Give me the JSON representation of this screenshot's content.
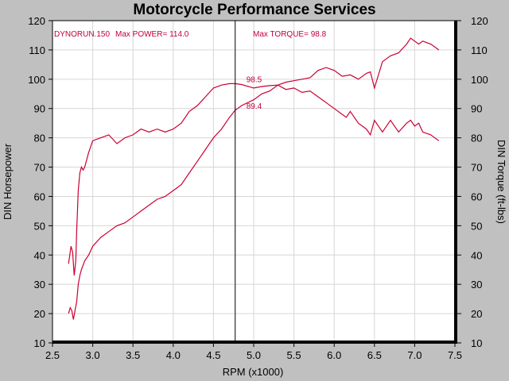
{
  "chart_data": {
    "type": "line",
    "title": "Motorcycle Performance Services",
    "xlabel": "RPM (x1000)",
    "ylabel_left": "DIN Horsepower",
    "ylabel_right": "DIN Torque (ft-lbs)",
    "xlim": [
      2.5,
      7.5
    ],
    "ylim": [
      10,
      120
    ],
    "x_ticks": [
      "2.5",
      "3.0",
      "3.5",
      "4.0",
      "4.5",
      "5.0",
      "5.5",
      "6.0",
      "6.5",
      "7.0",
      "7.5"
    ],
    "y_ticks": [
      "10",
      "20",
      "30",
      "40",
      "50",
      "60",
      "70",
      "80",
      "90",
      "100",
      "110",
      "120"
    ],
    "grid": true,
    "colors": {
      "series": "#cc0033",
      "background": "#ffffff",
      "frame": "#c0c0c0"
    },
    "annotations": {
      "run": "DYNORUN.150",
      "max_power": "Max POWER= 114.0",
      "max_torque": "Max TORQUE= 98.8",
      "cursor_x": 4.77,
      "cursor_torque_label": "98.5",
      "cursor_power_label": "89.4"
    },
    "series": [
      {
        "x": [
          2.7,
          2.73,
          2.75,
          2.77,
          2.79,
          2.8,
          2.82,
          2.84,
          2.86,
          2.88,
          2.9,
          2.95,
          3.0,
          3.1,
          3.2,
          3.3,
          3.4,
          3.5,
          3.6,
          3.7,
          3.8,
          3.9,
          4.0,
          4.1,
          4.2,
          4.3,
          4.4,
          4.5,
          4.6,
          4.7,
          4.77,
          4.85,
          5.0,
          5.1,
          5.2,
          5.3,
          5.4,
          5.5,
          5.6,
          5.7,
          5.8,
          5.9,
          6.0,
          6.1,
          6.15,
          6.2,
          6.3,
          6.4,
          6.45,
          6.5,
          6.6,
          6.7,
          6.8,
          6.9,
          6.95,
          7.0,
          7.05,
          7.1,
          7.2,
          7.3
        ],
        "values": [
          37,
          43,
          41,
          33,
          38,
          48,
          62,
          68,
          70,
          69,
          70,
          75,
          79,
          80,
          81,
          78,
          80,
          81,
          83,
          82,
          83,
          82,
          83,
          85,
          89,
          91,
          94,
          97,
          98,
          98.5,
          98.5,
          98.2,
          97,
          97.5,
          97.8,
          98,
          96.5,
          97,
          95.5,
          96,
          94,
          92,
          90,
          88,
          87,
          89,
          85,
          83,
          81,
          86,
          82,
          86,
          82,
          85,
          86,
          84,
          85,
          82,
          81,
          79
        ]
      },
      {
        "x": [
          2.7,
          2.72,
          2.74,
          2.76,
          2.78,
          2.8,
          2.82,
          2.84,
          2.86,
          2.9,
          2.95,
          3.0,
          3.1,
          3.2,
          3.3,
          3.4,
          3.5,
          3.6,
          3.7,
          3.8,
          3.9,
          4.0,
          4.1,
          4.2,
          4.3,
          4.4,
          4.5,
          4.6,
          4.7,
          4.77,
          4.85,
          5.0,
          5.1,
          5.2,
          5.3,
          5.4,
          5.5,
          5.6,
          5.7,
          5.8,
          5.9,
          6.0,
          6.1,
          6.2,
          6.3,
          6.4,
          6.45,
          6.5,
          6.6,
          6.7,
          6.8,
          6.9,
          6.95,
          7.0,
          7.05,
          7.1,
          7.2,
          7.3
        ],
        "values": [
          20,
          22,
          21,
          18,
          21,
          24,
          30,
          33,
          35,
          38,
          40,
          43,
          46,
          48,
          50,
          51,
          53,
          55,
          57,
          59,
          60,
          62,
          64,
          68,
          72,
          76,
          80,
          83,
          87,
          89.4,
          91,
          93,
          95,
          96,
          98,
          99,
          99.5,
          100,
          100.5,
          103,
          104,
          103,
          101,
          101.5,
          100,
          102,
          102.5,
          97,
          106,
          108,
          109,
          112,
          114,
          113,
          112,
          113,
          112,
          110
        ]
      }
    ]
  }
}
